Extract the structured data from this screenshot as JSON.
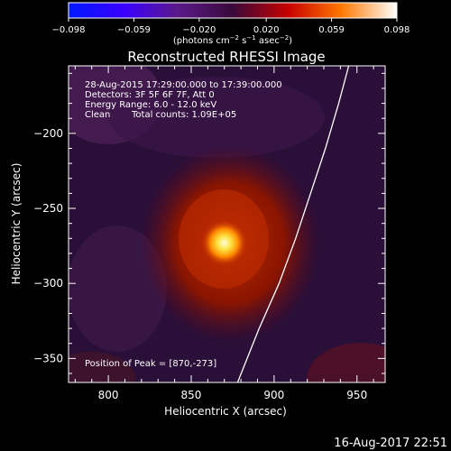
{
  "chart_data": {
    "type": "heatmap",
    "title": "Reconstructed RHESSI Image",
    "xlabel": "Heliocentric X (arcsec)",
    "ylabel": "Heliocentric Y (arcsec)",
    "xlim": [
      776,
      967
    ],
    "ylim": [
      -366,
      -155
    ],
    "x_ticks": [
      800,
      850,
      900,
      950
    ],
    "y_ticks": [
      -200,
      -250,
      -300,
      -350
    ],
    "colorbar": {
      "min": -0.098,
      "max": 0.098,
      "tick_labels": [
        "−0.098",
        "−0.059",
        "−0.020",
        "0.020",
        "0.059",
        "0.098"
      ],
      "tick_values": [
        -0.098,
        -0.059,
        -0.02,
        0.02,
        0.059,
        0.098
      ],
      "unit_prefix": "(photons cm",
      "unit_exp1": "−2",
      "unit_mid": " s",
      "unit_exp2": "−1",
      "unit_mid2": " asec",
      "unit_exp3": "−2",
      "unit_suffix": ")"
    },
    "peak": {
      "x": 870,
      "y": -273
    },
    "annotations": {
      "time_range": "28-Aug-2015 17:29:00.000 to 17:39:00.000",
      "detectors": "Detectors: 3F 5F 6F 7F, Att 0",
      "energy": "Energy Range: 6.0 - 12.0 keV",
      "clean": "Clean",
      "total_counts": "Total counts: 1.09E+05",
      "peak_text": "Position of Peak = [870,-273]"
    },
    "limb_curve": [
      [
        878,
        -366
      ],
      [
        891,
        -330
      ],
      [
        903,
        -300
      ],
      [
        913,
        -270
      ],
      [
        922,
        -240
      ],
      [
        931,
        -210
      ],
      [
        939,
        -180
      ],
      [
        945,
        -155
      ]
    ],
    "colors": {
      "background": "#000000",
      "limb": "#ffffff"
    }
  },
  "footer": {
    "timestamp": "16-Aug-2017 22:51"
  }
}
